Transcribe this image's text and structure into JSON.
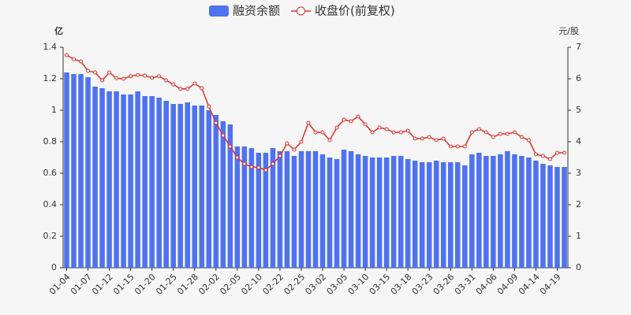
{
  "chart_data": {
    "type": "bar-line",
    "categories": [
      "01-04",
      null,
      null,
      "01-07",
      null,
      null,
      "01-12",
      null,
      null,
      "01-15",
      null,
      null,
      "01-20",
      null,
      null,
      "01-25",
      null,
      null,
      "01-28",
      null,
      null,
      "02-02",
      null,
      null,
      "02-05",
      null,
      null,
      "02-10",
      null,
      null,
      "02-22",
      null,
      null,
      "02-25",
      null,
      null,
      "03-02",
      null,
      null,
      "03-05",
      null,
      null,
      "03-10",
      null,
      null,
      "03-15",
      null,
      null,
      "03-18",
      null,
      null,
      "03-23",
      null,
      null,
      "03-26",
      null,
      null,
      "03-31",
      null,
      null,
      "04-06",
      null,
      null,
      "04-09",
      null,
      null,
      "04-14",
      null,
      null,
      "04-19",
      null
    ],
    "y_unit": "亿",
    "y2_unit": "元/股",
    "ylim": [
      0,
      1.4
    ],
    "yticks": [
      0,
      0.2,
      0.4,
      0.6,
      0.8,
      1,
      1.2,
      1.4
    ],
    "y2lim": [
      0,
      7
    ],
    "y2ticks": [
      0,
      1,
      2,
      3,
      4,
      5,
      6,
      7
    ],
    "series": [
      {
        "name": "融资余额",
        "type": "bar",
        "color": "#4e72f0",
        "values": [
          1.24,
          1.23,
          1.23,
          1.21,
          1.15,
          1.14,
          1.12,
          1.12,
          1.1,
          1.1,
          1.12,
          1.09,
          1.09,
          1.08,
          1.06,
          1.04,
          1.04,
          1.05,
          1.03,
          1.03,
          1.0,
          0.97,
          0.93,
          0.91,
          0.77,
          0.77,
          0.76,
          0.73,
          0.73,
          0.76,
          0.74,
          0.74,
          0.71,
          0.74,
          0.74,
          0.74,
          0.72,
          0.7,
          0.69,
          0.75,
          0.74,
          0.72,
          0.71,
          0.7,
          0.7,
          0.7,
          0.71,
          0.71,
          0.69,
          0.68,
          0.67,
          0.67,
          0.68,
          0.67,
          0.67,
          0.67,
          0.65,
          0.72,
          0.73,
          0.71,
          0.71,
          0.72,
          0.74,
          0.72,
          0.71,
          0.7,
          0.68,
          0.66,
          0.65,
          0.64,
          0.64
        ]
      },
      {
        "name": "收盘价(前复权)",
        "type": "line",
        "axis": "y2",
        "color": "#d9302a",
        "values": [
          6.75,
          6.62,
          6.55,
          6.25,
          6.2,
          5.95,
          6.2,
          6.02,
          6.0,
          6.08,
          6.12,
          6.1,
          6.03,
          6.08,
          5.95,
          5.82,
          5.68,
          5.68,
          5.85,
          5.7,
          5.12,
          4.6,
          4.2,
          3.85,
          3.5,
          3.3,
          3.2,
          3.18,
          3.1,
          3.3,
          3.55,
          3.95,
          3.75,
          4.0,
          4.6,
          4.3,
          4.3,
          4.05,
          4.45,
          4.7,
          4.65,
          4.8,
          4.55,
          4.3,
          4.45,
          4.4,
          4.3,
          4.3,
          4.35,
          4.1,
          4.1,
          4.15,
          4.05,
          4.1,
          3.85,
          3.85,
          3.85,
          4.3,
          4.4,
          4.3,
          4.15,
          4.25,
          4.25,
          4.3,
          4.15,
          4.05,
          3.6,
          3.55,
          3.45,
          3.65,
          3.65
        ]
      }
    ]
  }
}
